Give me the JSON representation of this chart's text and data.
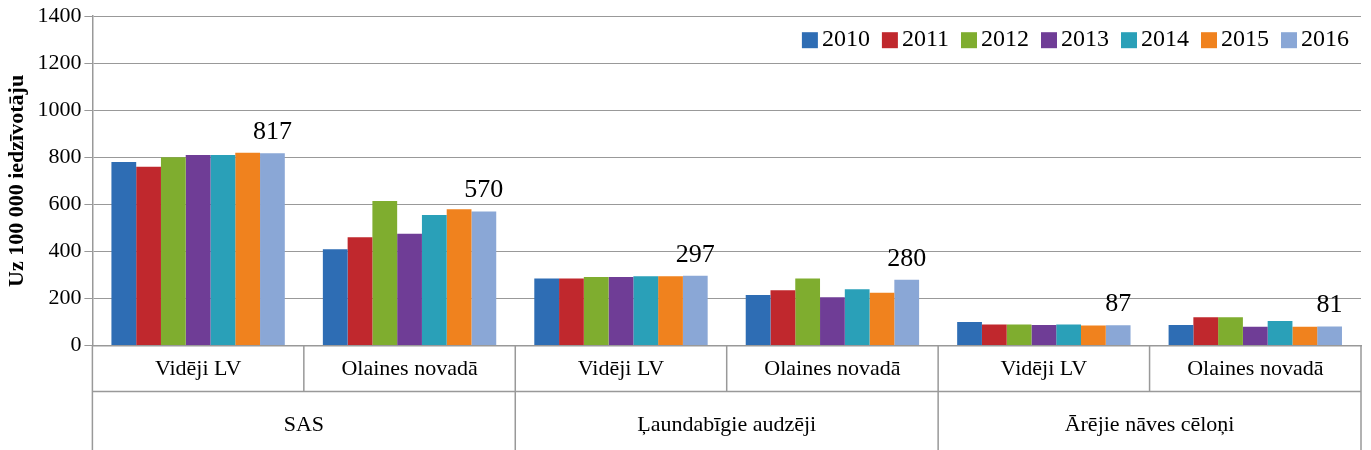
{
  "chart_data": {
    "type": "bar",
    "ylabel": "Uz 100 000 iedzīvotāju",
    "categories": [
      "Vidēji LV",
      "Olaines novadā",
      "Vidēji LV",
      "Olaines novadā",
      "Vidēji LV",
      "Olaines novadā"
    ],
    "annotations": [
      "SAS",
      "Ļaundabīgie audzēji",
      "Ārējie nāves cēloņi"
    ],
    "series": [
      {
        "name": "2010",
        "color": "#2e6db4",
        "values": [
          780,
          410,
          285,
          215,
          100,
          88
        ]
      },
      {
        "name": "2011",
        "color": "#c0282d",
        "values": [
          760,
          460,
          285,
          235,
          90,
          120
        ]
      },
      {
        "name": "2012",
        "color": "#7fad2f",
        "values": [
          800,
          615,
          292,
          285,
          90,
          120
        ]
      },
      {
        "name": "2013",
        "color": "#6f3d96",
        "values": [
          810,
          475,
          292,
          205,
          88,
          80
        ]
      },
      {
        "name": "2014",
        "color": "#2aa0b8",
        "values": [
          810,
          555,
          295,
          240,
          90,
          105
        ]
      },
      {
        "name": "2015",
        "color": "#f0821e",
        "values": [
          820,
          580,
          295,
          225,
          85,
          80
        ]
      },
      {
        "name": "2016",
        "color": "#8aa7d6",
        "values": [
          817,
          570,
          297,
          280,
          87,
          81
        ],
        "value_labels": [
          "817",
          "570",
          "297",
          "280",
          "87",
          "81"
        ]
      }
    ],
    "ylim": [
      0,
      1400
    ],
    "yticks": [
      0,
      200,
      400,
      600,
      800,
      1000,
      1200,
      1400
    ],
    "grid": "y",
    "legend": "top right"
  }
}
